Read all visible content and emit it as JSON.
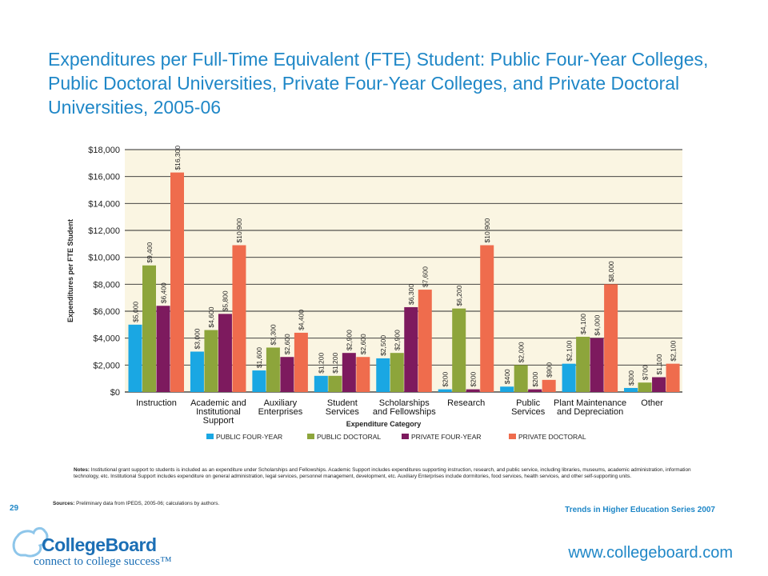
{
  "page": {
    "title": "Expenditures per Full-Time Equivalent (FTE) Student: Public Four-Year Colleges, Public Doctoral Universities, Private Four-Year Colleges, and Private Doctoral Universities, 2005-06",
    "notes_label": "Notes:",
    "notes_text": "Institutional grant support to students is included as an expenditure under Scholarships and Fellowships. Academic Support includes expenditures supporting instruction, research, and public service, including libraries, museums, academic administration, information technology, etc. Institutional Support includes expenditure on general administration, legal services, personnel management, development, etc. Auxiliary Enterprises include dormitories, food services, health services, and other self-supporting units.",
    "sources_label": "Sources:",
    "sources_text": "Preliminary data from IPEDS, 2005-06; calculations by authors.",
    "page_number": "29",
    "series_text": "Trends in Higher Education Series 2007",
    "logo_name": "CollegeBoard",
    "logo_tagline": "connect to college success™",
    "url": "www.collegeboard.com"
  },
  "chart_data": {
    "type": "bar",
    "xlabel": "Expenditure Category",
    "ylabel": "Expenditures per FTE Student",
    "ylim": [
      0,
      18000
    ],
    "y_ticks": [
      "$0",
      "$2,000",
      "$4,000",
      "$6,000",
      "$8,000",
      "$10,000",
      "$12,000",
      "$14,000",
      "$16,000",
      "$18,000"
    ],
    "grid": true,
    "legend_position": "bottom",
    "categories": [
      [
        "Instruction"
      ],
      [
        "Academic and",
        "Institutional",
        "Support"
      ],
      [
        "Auxiliary",
        "Enterprises"
      ],
      [
        "Student",
        "Services"
      ],
      [
        "Scholarships",
        "and Fellowships"
      ],
      [
        "Research"
      ],
      [
        "Public",
        "Services"
      ],
      [
        "Plant Maintenance",
        "and Depreciation"
      ],
      [
        "Other"
      ]
    ],
    "series": [
      {
        "name": "PUBLIC FOUR-YEAR",
        "color": "#1aa7e3",
        "values": [
          5000,
          3000,
          1600,
          1200,
          2500,
          200,
          400,
          2100,
          300
        ],
        "labels": [
          "$5,000",
          "$3,000",
          "$1,600",
          "$1,200",
          "$2,500",
          "$200",
          "$400",
          "$2,100",
          "$300"
        ]
      },
      {
        "name": "PUBLIC DOCTORAL",
        "color": "#8da53b",
        "values": [
          9400,
          4600,
          3300,
          1200,
          2900,
          6200,
          2000,
          4100,
          700
        ],
        "labels": [
          "$9,400",
          "$4,600",
          "$3,300",
          "$1,200",
          "$2,900",
          "$6,200",
          "$2,000",
          "$4,100",
          "$700"
        ]
      },
      {
        "name": "PRIVATE FOUR-YEAR",
        "color": "#7d1a5e",
        "values": [
          6400,
          5800,
          2600,
          2900,
          6300,
          200,
          200,
          4000,
          1100
        ],
        "labels": [
          "$6,400",
          "$5,800",
          "$2,600",
          "$2,900",
          "$6,300",
          "$200",
          "$200",
          "$4,000",
          "$1,100"
        ]
      },
      {
        "name": "PRIVATE DOCTORAL",
        "color": "#ef6c4d",
        "values": [
          16300,
          10900,
          4400,
          2600,
          7600,
          10900,
          900,
          8000,
          2100
        ],
        "labels": [
          "$16,300",
          "$10,900",
          "$4,400",
          "$2,600",
          "$7,600",
          "$10,900",
          "$900",
          "$8,000",
          "$2,100"
        ]
      }
    ],
    "colors": {
      "plot_background": "#faf5e2",
      "grid": "#2b2b2b"
    }
  }
}
